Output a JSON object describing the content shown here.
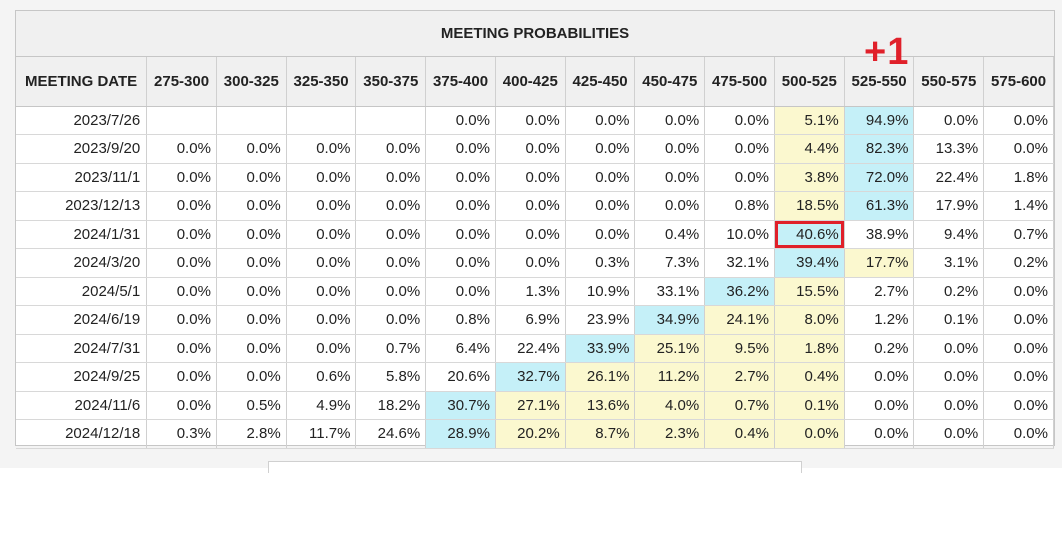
{
  "table": {
    "title": "MEETING PROBABILITIES",
    "date_header": "MEETING DATE",
    "columns": [
      "275-300",
      "300-325",
      "325-350",
      "350-375",
      "375-400",
      "400-425",
      "425-450",
      "450-475",
      "475-500",
      "500-525",
      "525-550",
      "550-575",
      "575-600"
    ],
    "rows": [
      {
        "date": "2023/7/26",
        "values": [
          "",
          "",
          "",
          "",
          "0.0%",
          "0.0%",
          "0.0%",
          "0.0%",
          "0.0%",
          "5.1%",
          "94.9%",
          "0.0%",
          "0.0%"
        ],
        "blue": 10,
        "yellow": [
          9
        ]
      },
      {
        "date": "2023/9/20",
        "values": [
          "0.0%",
          "0.0%",
          "0.0%",
          "0.0%",
          "0.0%",
          "0.0%",
          "0.0%",
          "0.0%",
          "0.0%",
          "4.4%",
          "82.3%",
          "13.3%",
          "0.0%"
        ],
        "blue": 10,
        "yellow": [
          9
        ]
      },
      {
        "date": "2023/11/1",
        "values": [
          "0.0%",
          "0.0%",
          "0.0%",
          "0.0%",
          "0.0%",
          "0.0%",
          "0.0%",
          "0.0%",
          "0.0%",
          "3.8%",
          "72.0%",
          "22.4%",
          "1.8%"
        ],
        "blue": 10,
        "yellow": [
          9
        ]
      },
      {
        "date": "2023/12/13",
        "values": [
          "0.0%",
          "0.0%",
          "0.0%",
          "0.0%",
          "0.0%",
          "0.0%",
          "0.0%",
          "0.0%",
          "0.8%",
          "18.5%",
          "61.3%",
          "17.9%",
          "1.4%"
        ],
        "blue": 10,
        "yellow": [
          9
        ]
      },
      {
        "date": "2024/1/31",
        "values": [
          "0.0%",
          "0.0%",
          "0.0%",
          "0.0%",
          "0.0%",
          "0.0%",
          "0.0%",
          "0.4%",
          "10.0%",
          "40.6%",
          "38.9%",
          "9.4%",
          "0.7%"
        ],
        "blue": 9,
        "yellow": [],
        "selected": 9
      },
      {
        "date": "2024/3/20",
        "values": [
          "0.0%",
          "0.0%",
          "0.0%",
          "0.0%",
          "0.0%",
          "0.0%",
          "0.3%",
          "7.3%",
          "32.1%",
          "39.4%",
          "17.7%",
          "3.1%",
          "0.2%"
        ],
        "blue": 9,
        "yellow": [
          10
        ]
      },
      {
        "date": "2024/5/1",
        "values": [
          "0.0%",
          "0.0%",
          "0.0%",
          "0.0%",
          "0.0%",
          "1.3%",
          "10.9%",
          "33.1%",
          "36.2%",
          "15.5%",
          "2.7%",
          "0.2%",
          "0.0%"
        ],
        "blue": 8,
        "yellow": [
          9
        ]
      },
      {
        "date": "2024/6/19",
        "values": [
          "0.0%",
          "0.0%",
          "0.0%",
          "0.0%",
          "0.8%",
          "6.9%",
          "23.9%",
          "34.9%",
          "24.1%",
          "8.0%",
          "1.2%",
          "0.1%",
          "0.0%"
        ],
        "blue": 7,
        "yellow": [
          8,
          9
        ]
      },
      {
        "date": "2024/7/31",
        "values": [
          "0.0%",
          "0.0%",
          "0.0%",
          "0.7%",
          "6.4%",
          "22.4%",
          "33.9%",
          "25.1%",
          "9.5%",
          "1.8%",
          "0.2%",
          "0.0%",
          "0.0%"
        ],
        "blue": 6,
        "yellow": [
          7,
          8,
          9
        ]
      },
      {
        "date": "2024/9/25",
        "values": [
          "0.0%",
          "0.0%",
          "0.6%",
          "5.8%",
          "20.6%",
          "32.7%",
          "26.1%",
          "11.2%",
          "2.7%",
          "0.4%",
          "0.0%",
          "0.0%",
          "0.0%"
        ],
        "blue": 5,
        "yellow": [
          6,
          7,
          8,
          9
        ]
      },
      {
        "date": "2024/11/6",
        "values": [
          "0.0%",
          "0.5%",
          "4.9%",
          "18.2%",
          "30.7%",
          "27.1%",
          "13.6%",
          "4.0%",
          "0.7%",
          "0.1%",
          "0.0%",
          "0.0%",
          "0.0%"
        ],
        "blue": 4,
        "yellow": [
          5,
          6,
          7,
          8,
          9
        ]
      },
      {
        "date": "2024/12/18",
        "values": [
          "0.3%",
          "2.8%",
          "11.7%",
          "24.6%",
          "28.9%",
          "20.2%",
          "8.7%",
          "2.3%",
          "0.4%",
          "0.0%",
          "0.0%",
          "0.0%",
          "0.0%"
        ],
        "blue": 4,
        "yellow": [
          5,
          6,
          7,
          8,
          9
        ]
      }
    ]
  },
  "annotation": {
    "text": "+1",
    "color": "#e0202a"
  },
  "colors": {
    "blue": "#c5f0f8",
    "yellow": "#fbf8cf",
    "highlight_border": "#e0202a"
  }
}
